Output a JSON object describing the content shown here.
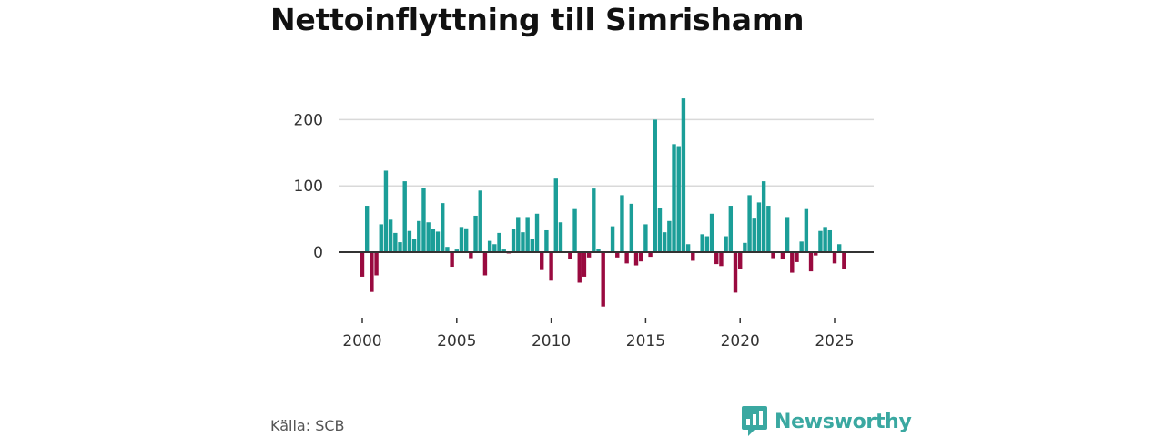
{
  "title": "Nettoinflyttning till Simrishamn",
  "source": "Källa: SCB",
  "brand": {
    "name": "Newsworthy",
    "icon": "newsworthy-logo-icon"
  },
  "colors": {
    "positive": "#1b9e98",
    "negative": "#990a3f",
    "grid": "#d9d9d9",
    "axis": "#333333",
    "brand": "#3aa8a1"
  },
  "chart_data": {
    "type": "bar",
    "title": "Nettoinflyttning till Simrishamn",
    "xlabel": "",
    "ylabel": "",
    "ylim": [
      -85,
      240
    ],
    "xlim": [
      1999.5,
      2026.2
    ],
    "yticks": [
      0,
      100,
      200
    ],
    "xticks": [
      2000,
      2005,
      2010,
      2015,
      2020,
      2025
    ],
    "grid": true,
    "period": "quarterly",
    "series": [
      {
        "name": "Nettoinflyttning",
        "x": [
          2000.0,
          2000.25,
          2000.5,
          2000.75,
          2001.0,
          2001.25,
          2001.5,
          2001.75,
          2002.0,
          2002.25,
          2002.5,
          2002.75,
          2003.0,
          2003.25,
          2003.5,
          2003.75,
          2004.0,
          2004.25,
          2004.5,
          2004.75,
          2005.0,
          2005.25,
          2005.5,
          2005.75,
          2006.0,
          2006.25,
          2006.5,
          2006.75,
          2007.0,
          2007.25,
          2007.5,
          2007.75,
          2008.0,
          2008.25,
          2008.5,
          2008.75,
          2009.0,
          2009.25,
          2009.5,
          2009.75,
          2010.0,
          2010.25,
          2010.5,
          2010.75,
          2011.0,
          2011.25,
          2011.5,
          2011.75,
          2012.0,
          2012.25,
          2012.5,
          2012.75,
          2013.0,
          2013.25,
          2013.5,
          2013.75,
          2014.0,
          2014.25,
          2014.5,
          2014.75,
          2015.0,
          2015.25,
          2015.5,
          2015.75,
          2016.0,
          2016.25,
          2016.5,
          2016.75,
          2017.0,
          2017.25,
          2017.5,
          2017.75,
          2018.0,
          2018.25,
          2018.5,
          2018.75,
          2019.0,
          2019.25,
          2019.5,
          2019.75,
          2020.0,
          2020.25,
          2020.5,
          2020.75,
          2021.0,
          2021.25,
          2021.5,
          2021.75,
          2022.0,
          2022.25,
          2022.5,
          2022.75,
          2023.0,
          2023.25,
          2023.5,
          2023.75,
          2024.0,
          2024.25,
          2024.5,
          2024.75,
          2025.0,
          2025.25,
          2025.5
        ],
        "values": [
          -37,
          70,
          -60,
          -35,
          42,
          123,
          49,
          29,
          15,
          107,
          32,
          20,
          47,
          97,
          45,
          35,
          31,
          74,
          8,
          -22,
          4,
          38,
          36,
          -9,
          55,
          93,
          -35,
          17,
          12,
          29,
          4,
          -2,
          35,
          53,
          30,
          53,
          20,
          58,
          -27,
          33,
          -43,
          111,
          45,
          0,
          -10,
          65,
          -46,
          -37,
          -8,
          96,
          5,
          -82,
          0,
          39,
          -8,
          86,
          -17,
          73,
          -20,
          -14,
          42,
          -7,
          200,
          67,
          30,
          47,
          163,
          160,
          232,
          12,
          -13,
          0,
          27,
          24,
          58,
          -18,
          -21,
          24,
          70,
          -61,
          -26,
          14,
          86,
          52,
          75,
          107,
          70,
          -9,
          0,
          -11,
          53,
          -31,
          -15,
          16,
          65,
          -29,
          -5,
          32,
          38,
          33,
          -17,
          12,
          -26
        ]
      }
    ]
  }
}
